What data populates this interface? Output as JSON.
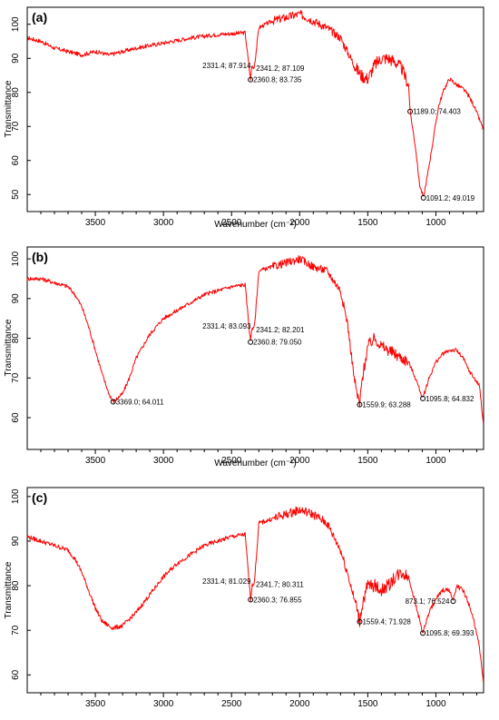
{
  "chart_data": [
    {
      "type": "line",
      "panel_label": "(a)",
      "xlabel": "Wavenumber (cm⁻¹)",
      "ylabel": "Transmittance",
      "xlim": [
        4000,
        650
      ],
      "x_reversed": true,
      "ylim": [
        45,
        105
      ],
      "xticks": [
        3500,
        3000,
        2500,
        2000,
        1500,
        1000
      ],
      "yticks": [
        50,
        60,
        70,
        80,
        90,
        100
      ],
      "series": [
        {
          "color": "#ff0000",
          "x": [
            4000,
            3900,
            3800,
            3700,
            3600,
            3500,
            3400,
            3300,
            3200,
            3000,
            2800,
            2600,
            2400,
            2360.8,
            2350,
            2341.2,
            2331.4,
            2300,
            2200,
            2100,
            2000,
            1900,
            1800,
            1700,
            1650,
            1600,
            1550,
            1500,
            1450,
            1400,
            1350,
            1300,
            1250,
            1200,
            1189.0,
            1150,
            1120,
            1091.2,
            1060,
            1020,
            980,
            940,
            900,
            870,
            840,
            800,
            760,
            720,
            680,
            650
          ],
          "y": [
            96,
            95,
            93,
            92,
            91,
            92,
            91,
            92,
            93,
            94.5,
            96,
            97,
            97.5,
            83.7,
            88,
            87.1,
            87.9,
            99,
            101,
            102,
            103,
            101,
            99,
            96,
            92,
            88,
            85,
            84,
            88,
            90,
            90,
            89,
            87,
            82,
            74.4,
            64,
            53,
            49.0,
            56,
            66,
            76,
            81,
            84,
            83,
            82,
            81,
            79,
            76,
            72,
            69
          ],
          "noise": [
            1.2,
            2.5
          ]
        }
      ],
      "annotations": [
        {
          "label": "2331.4; 87.914",
          "x": 2331.4,
          "y": 87.914,
          "marker": false,
          "align": "left"
        },
        {
          "label": "2341.2; 87.109",
          "x": 2341.2,
          "y": 87.109,
          "marker": false,
          "align": "right"
        },
        {
          "label": "2360.8; 83.735",
          "x": 2360.8,
          "y": 83.735,
          "marker": true,
          "align": "right"
        },
        {
          "label": "1189.0; 74.403",
          "x": 1189.0,
          "y": 74.403,
          "marker": true,
          "align": "right"
        },
        {
          "label": "1091.2; 49.019",
          "x": 1091.2,
          "y": 49.019,
          "marker": true,
          "align": "right"
        }
      ]
    },
    {
      "type": "line",
      "panel_label": "(b)",
      "xlabel": "Wavenumber (cm⁻¹)",
      "ylabel": "Transmittance",
      "xlim": [
        4000,
        650
      ],
      "x_reversed": true,
      "ylim": [
        52,
        103
      ],
      "xticks": [
        3500,
        3000,
        2500,
        2000,
        1500,
        1000
      ],
      "yticks": [
        60,
        70,
        80,
        90,
        100
      ],
      "series": [
        {
          "color": "#ff0000",
          "x": [
            4000,
            3900,
            3800,
            3700,
            3650,
            3600,
            3550,
            3500,
            3450,
            3400,
            3369.0,
            3300,
            3250,
            3200,
            3100,
            3000,
            2900,
            2800,
            2700,
            2600,
            2500,
            2400,
            2360.8,
            2350,
            2341.2,
            2331.4,
            2300,
            2200,
            2100,
            2000,
            1900,
            1800,
            1700,
            1650,
            1600,
            1580,
            1559.9,
            1540,
            1500,
            1450,
            1400,
            1350,
            1300,
            1250,
            1200,
            1150,
            1095.8,
            1050,
            1000,
            950,
            900,
            850,
            800,
            760,
            720,
            680,
            650
          ],
          "y": [
            95,
            95,
            94,
            93,
            91,
            88,
            83,
            77,
            71,
            66,
            64.0,
            66,
            70,
            75,
            81,
            85,
            87,
            89,
            91,
            92,
            93,
            93.5,
            79.05,
            83,
            82.2,
            83.1,
            97,
            98,
            99,
            100,
            98,
            97,
            92,
            84,
            70,
            66,
            63.3,
            70,
            78,
            80,
            78,
            77,
            76,
            75,
            74,
            70,
            64.8,
            70,
            74,
            76,
            77,
            77,
            75,
            72,
            70,
            68,
            58
          ],
          "noise": [
            1.0,
            2.0
          ]
        }
      ],
      "annotations": [
        {
          "label": "2331.4; 83.093",
          "x": 2331.4,
          "y": 83.093,
          "marker": false,
          "align": "left"
        },
        {
          "label": "2341.2; 82.201",
          "x": 2341.2,
          "y": 82.201,
          "marker": false,
          "align": "right"
        },
        {
          "label": "2360.8; 79.050",
          "x": 2360.8,
          "y": 79.05,
          "marker": true,
          "align": "right"
        },
        {
          "label": "3369.0; 64.011",
          "x": 3369.0,
          "y": 64.011,
          "marker": true,
          "align": "right"
        },
        {
          "label": "1559.9; 63.288",
          "x": 1559.9,
          "y": 63.288,
          "marker": true,
          "align": "right"
        },
        {
          "label": "1095.8; 64.832",
          "x": 1095.8,
          "y": 64.832,
          "marker": true,
          "align": "right"
        }
      ]
    },
    {
      "type": "line",
      "panel_label": "(c)",
      "xlabel": "",
      "ylabel": "Transmittance",
      "xlim": [
        4000,
        650
      ],
      "x_reversed": true,
      "ylim": [
        56,
        102
      ],
      "xticks": [
        3500,
        3000,
        2500,
        2000,
        1500,
        1000
      ],
      "yticks": [
        60,
        70,
        80,
        90,
        100
      ],
      "series": [
        {
          "color": "#ff0000",
          "x": [
            4000,
            3900,
            3800,
            3700,
            3650,
            3600,
            3550,
            3500,
            3450,
            3400,
            3369.0,
            3300,
            3200,
            3100,
            3000,
            2900,
            2800,
            2700,
            2600,
            2500,
            2400,
            2360.3,
            2350,
            2341.7,
            2331.4,
            2300,
            2200,
            2100,
            2000,
            1900,
            1800,
            1700,
            1650,
            1600,
            1580,
            1559.4,
            1540,
            1500,
            1450,
            1400,
            1350,
            1300,
            1250,
            1200,
            1150,
            1095.8,
            1050,
            1000,
            950,
            900,
            873.1,
            850,
            800,
            760,
            720,
            680,
            650
          ],
          "y": [
            91,
            90,
            89,
            88,
            86,
            83,
            79,
            75,
            72,
            71,
            70.5,
            71,
            74,
            78,
            82,
            85,
            87,
            89,
            90,
            91,
            91.5,
            76.86,
            80,
            80.3,
            81.0,
            94,
            95,
            96,
            97,
            96,
            94,
            88,
            83,
            77,
            75,
            71.9,
            76,
            80,
            80,
            79,
            80,
            82,
            83,
            82,
            76,
            69.4,
            74,
            77,
            79,
            79,
            76.5,
            80,
            79,
            76,
            72,
            66,
            58
          ],
          "noise": [
            1.0,
            2.0
          ]
        }
      ],
      "annotations": [
        {
          "label": "2331.4; 81.029",
          "x": 2331.4,
          "y": 81.029,
          "marker": false,
          "align": "left"
        },
        {
          "label": "2341.7; 80.311",
          "x": 2341.7,
          "y": 80.311,
          "marker": false,
          "align": "right"
        },
        {
          "label": "2360.3; 76.855",
          "x": 2360.3,
          "y": 76.855,
          "marker": true,
          "align": "right"
        },
        {
          "label": "1559.4; 71.928",
          "x": 1559.4,
          "y": 71.928,
          "marker": true,
          "align": "right"
        },
        {
          "label": "1095.8; 69.393",
          "x": 1095.8,
          "y": 69.393,
          "marker": true,
          "align": "right"
        },
        {
          "label": "873.1; 76.524",
          "x": 873.1,
          "y": 76.524,
          "marker": true,
          "align": "left"
        }
      ]
    }
  ]
}
